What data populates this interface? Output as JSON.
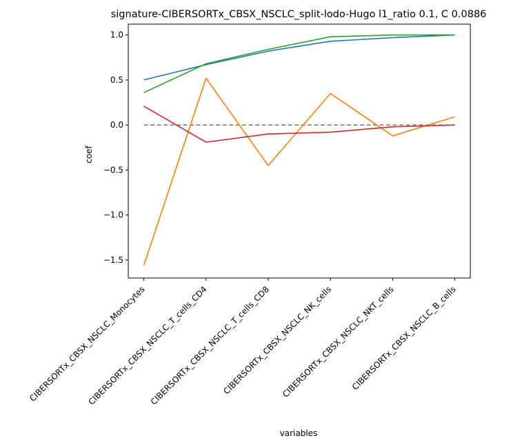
{
  "chart_data": {
    "type": "line",
    "title": "signature-CIBERSORTx_CBSX_NSCLC_split-lodo-Hugo l1_ratio 0.1, C 0.0886",
    "xlabel": "variables",
    "ylabel": "coef",
    "categories": [
      "CIBERSORTx_CBSX_NSCLC_Monocytes",
      "CIBERSORTx_CBSX_NSCLC_T_cells_CD4",
      "CIBERSORTx_CBSX_NSCLC_T_cells_CD8",
      "CIBERSORTx_CBSX_NSCLC_NK_cells",
      "CIBERSORTx_CBSX_NSCLC_NKT_cells",
      "CIBERSORTx_CBSX_NSCLC_B_cells"
    ],
    "ylim": [
      -1.7,
      1.12
    ],
    "yticks": [
      1.0,
      0.5,
      0.0,
      -0.5,
      -1.0,
      -1.5
    ],
    "ytick_labels": [
      "1.0",
      "0.5",
      "0.0",
      "−0.5",
      "−1.0",
      "−1.5"
    ],
    "grid": false,
    "series": [
      {
        "color": "#1f77b4",
        "values": [
          0.5,
          0.67,
          0.82,
          0.93,
          0.97,
          1.0
        ]
      },
      {
        "color": "#ff7f0e",
        "values": [
          -1.56,
          0.52,
          -0.45,
          0.35,
          -0.12,
          0.09
        ]
      },
      {
        "color": "#2ca02c",
        "values": [
          0.36,
          0.68,
          0.84,
          0.98,
          1.0,
          1.0
        ]
      },
      {
        "color": "#d62728",
        "values": [
          0.21,
          -0.19,
          -0.1,
          -0.08,
          -0.02,
          0.0
        ]
      }
    ],
    "reference_line": {
      "y": 0.0,
      "color": "#808080",
      "style": "dashed"
    }
  }
}
